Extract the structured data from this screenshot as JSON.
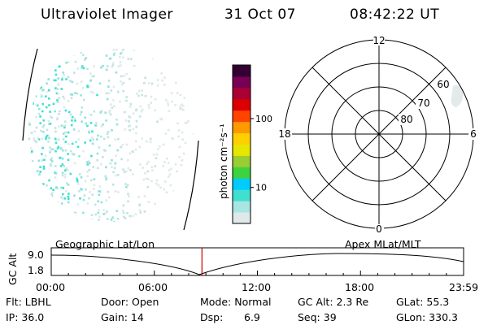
{
  "header": {
    "instrument": "Ultraviolet Imager",
    "date": "31 Oct 07",
    "time": "08:42:22 UT"
  },
  "colorbar": {
    "unit_label": "photon cm⁻²s⁻¹",
    "tick_labels": [
      "100",
      "10"
    ],
    "tick_values": [
      100,
      10
    ],
    "range": [
      3,
      600
    ],
    "scale": "log",
    "colors": [
      "#dfe9e9",
      "#a8e6e4",
      "#40e0d0",
      "#00ccff",
      "#3fd23f",
      "#9acd32",
      "#e6e600",
      "#ffd000",
      "#ff9900",
      "#ff4400",
      "#dd0000",
      "#aa0033",
      "#770055",
      "#330033"
    ]
  },
  "polar_plot": {
    "mlt_labels": {
      "top": "12",
      "left": "18",
      "right": "6",
      "bottom": "0"
    },
    "lat_labels": [
      "60",
      "70",
      "80"
    ]
  },
  "timeline": {
    "y_axis_label": "GC Alt",
    "y_ticks": [
      "9.0",
      "1.8"
    ],
    "left_label": "Geographic Lat/Lon",
    "right_label": "Apex MLat/MLT",
    "x_ticks": [
      "00:00",
      "06:00",
      "12:00",
      "18:00",
      "23:59"
    ],
    "current_time_fraction": 0.3655,
    "marker_color": "#cc0000"
  },
  "status": {
    "flt": "Flt: LBHL",
    "ip": "IP: 36.0",
    "door": "Door: Open",
    "gain": "Gain: 14",
    "mode": "Mode: Normal",
    "dsp_label": "Dsp:",
    "dsp_value": "6.9",
    "gc_alt": "GC Alt: 2.3 Re",
    "seq": "Seq: 39",
    "glat": "GLat:  55.3",
    "glon": "GLon: 330.3"
  }
}
